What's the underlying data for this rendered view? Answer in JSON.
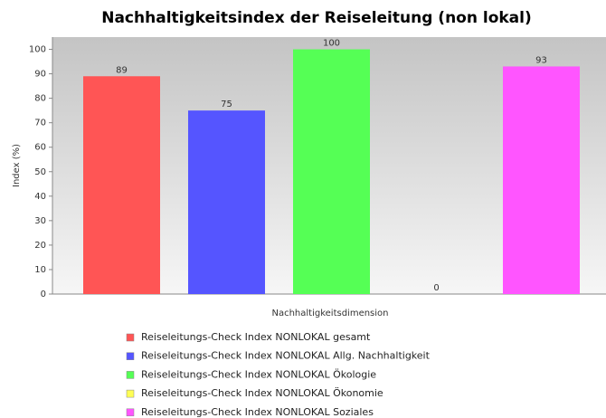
{
  "chart_data": {
    "type": "bar",
    "title": "Nachhaltigkeitsindex der Reiseleitung (non lokal)",
    "x_label": "Nachhaltigkeitsdimension",
    "y_label": "Index (%)",
    "series": [
      {
        "name": "Reiseleitungs-Check Index NONLOKAL gesamt",
        "color": "#ff5555",
        "values": [
          89
        ]
      },
      {
        "name": "Reiseleitungs-Check Index NONLOKAL Allg. Nachhaltigkeit",
        "color": "#5555ff",
        "values": [
          75
        ]
      },
      {
        "name": "Reiseleitungs-Check Index NONLOKAL Ökologie",
        "color": "#55ff55",
        "values": [
          100
        ]
      },
      {
        "name": "Reiseleitungs-Check Index NONLOKAL Ökonomie",
        "color": "#ffff55",
        "values": [
          0
        ]
      },
      {
        "name": "Reiseleitungs-Check Index NONLOKAL Soziales",
        "color": "#ff55ff",
        "values": [
          93
        ]
      }
    ],
    "ylim": [
      0,
      105
    ],
    "yticks": [
      0,
      10,
      20,
      30,
      40,
      50,
      60,
      70,
      80,
      90,
      100
    ]
  }
}
